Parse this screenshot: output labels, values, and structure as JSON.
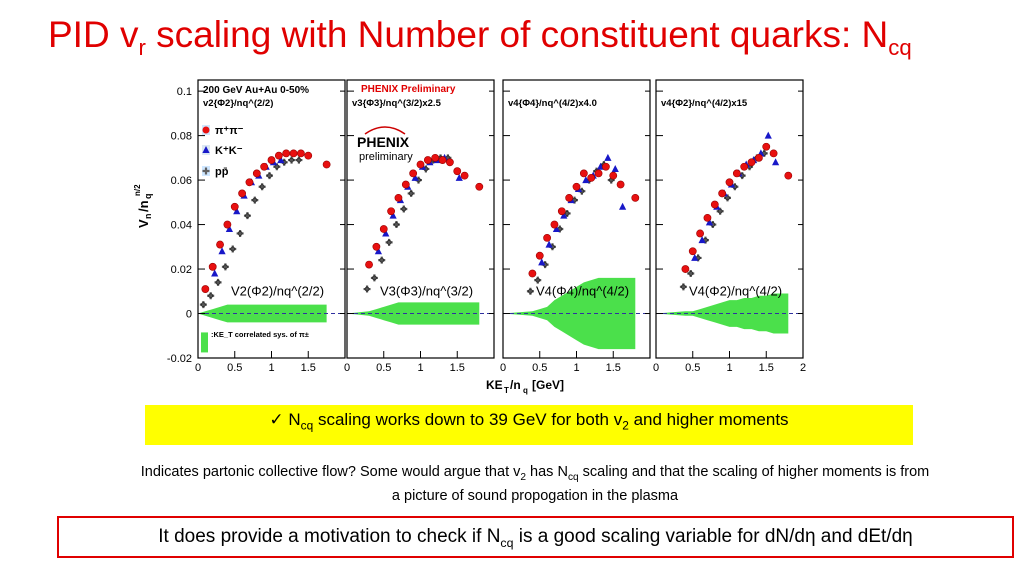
{
  "slide": {
    "title_main": "PID v",
    "title_sub1": "r",
    "title_rest": " scaling with Number of constituent quarks: N",
    "title_sub2": "cq",
    "bullet_pre": "✓ N",
    "bullet_sub": "cq",
    "bullet_mid": " scaling works down to 39 GeV for both v",
    "bullet_sub2": "2",
    "bullet_post": " and higher moments",
    "note_p1": "Indicates partonic collective flow? Some would argue that v",
    "note_sub1": "2",
    "note_p2": " has N",
    "note_sub2": "cq",
    "note_p3": " scaling and that the scaling of higher moments is from a picture of sound propogation in the plasma",
    "box_p1": "It does provide a motivation to check if N",
    "box_sub": "cq",
    "box_p2": " is a good scaling variable for dN/dη and dEt/dη"
  },
  "chart_data": {
    "type": "scatter",
    "xlabel": "KE_T/n_q [GeV]",
    "ylabel": "V_n/n_q^(n/2)",
    "xlim": [
      0,
      2
    ],
    "ylim": [
      -0.02,
      0.105
    ],
    "y_ticks": [
      "-0.02",
      "0",
      "0.02",
      "0.04",
      "0.06",
      "0.08",
      "0.1"
    ],
    "x_ticks": [
      "0",
      "0.5",
      "1",
      "1.5",
      "2"
    ],
    "system_label": "200 GeV Au+Au 0-50%",
    "phenix_label": "PHENIX Preliminary",
    "logo_text": "PHENIX",
    "logo_sub": "preliminary",
    "sys_note": ":KE_T correlated sys. of π±",
    "legend": [
      {
        "name": "π⁺π⁻",
        "color": "#e81010"
      },
      {
        "name": "K⁺K⁻",
        "color": "#1818c8"
      },
      {
        "name": "pp̄",
        "color": "#606060"
      }
    ],
    "panels": [
      {
        "header": "v2{Φ2}/nq^(2/2)",
        "overlay_label": "V2(Φ2)/nq^(2/2)",
        "x": [
          0.1,
          0.2,
          0.3,
          0.4,
          0.5,
          0.6,
          0.7,
          0.8,
          0.9,
          1.0,
          1.1,
          1.2,
          1.3,
          1.4,
          1.5,
          1.75
        ],
        "pions": [
          0.011,
          0.021,
          0.031,
          0.04,
          0.048,
          0.054,
          0.059,
          0.063,
          0.066,
          0.069,
          0.071,
          0.072,
          0.072,
          0.072,
          0.071,
          0.067
        ],
        "kaons": [
          null,
          0.018,
          0.028,
          0.038,
          0.046,
          0.053,
          0.059,
          0.062,
          0.066,
          0.068,
          0.069,
          null,
          null,
          null,
          null,
          null
        ],
        "protons": [
          0.004,
          0.008,
          0.014,
          0.021,
          0.029,
          0.036,
          0.044,
          0.051,
          0.057,
          0.062,
          0.066,
          0.068,
          0.069,
          0.069,
          null,
          null
        ],
        "band_halfwidth": [
          0.001,
          0.002,
          0.003,
          0.004,
          0.004,
          0.004,
          0.004,
          0.004,
          0.004,
          0.004,
          0.004,
          0.004,
          0.004,
          0.004,
          0.004,
          0.004
        ]
      },
      {
        "header": "v3{Φ3}/nq^(3/2)x2.5",
        "overlay_label": "V3(Φ3)/nq^(3/2)",
        "x": [
          0.3,
          0.4,
          0.5,
          0.6,
          0.7,
          0.8,
          0.9,
          1.0,
          1.1,
          1.2,
          1.3,
          1.4,
          1.5,
          1.6,
          1.8
        ],
        "pions": [
          0.022,
          0.03,
          0.038,
          0.046,
          0.052,
          0.058,
          0.063,
          0.067,
          0.069,
          0.07,
          0.069,
          0.068,
          0.064,
          0.062,
          0.057
        ],
        "kaons": [
          null,
          0.028,
          0.036,
          0.044,
          0.051,
          0.057,
          0.061,
          0.066,
          0.068,
          0.069,
          0.07,
          null,
          0.061,
          null,
          null
        ],
        "protons": [
          0.011,
          0.016,
          0.024,
          0.032,
          0.04,
          0.047,
          0.054,
          0.06,
          0.065,
          0.069,
          0.07,
          0.07,
          null,
          null,
          null
        ],
        "band_halfwidth": [
          0.001,
          0.002,
          0.003,
          0.004,
          0.005,
          0.005,
          0.005,
          0.005,
          0.005,
          0.005,
          0.005,
          0.005,
          0.005,
          0.005,
          0.005
        ]
      },
      {
        "header": "v4{Φ4}/nq^(4/2)x4.0",
        "overlay_label": "V4(Φ4)/nq^(4/2)",
        "x": [
          0.4,
          0.5,
          0.6,
          0.7,
          0.8,
          0.9,
          1.0,
          1.1,
          1.2,
          1.3,
          1.4,
          1.5,
          1.6,
          1.8
        ],
        "pions": [
          0.018,
          0.026,
          0.034,
          0.04,
          0.046,
          0.052,
          0.057,
          0.063,
          0.061,
          0.063,
          0.066,
          0.062,
          0.058,
          0.052
        ],
        "kaons": [
          null,
          0.023,
          0.031,
          0.038,
          0.044,
          0.051,
          0.056,
          0.06,
          0.062,
          0.066,
          0.07,
          0.065,
          0.048,
          null
        ],
        "protons": [
          0.01,
          0.015,
          0.022,
          0.03,
          0.038,
          0.045,
          0.051,
          0.055,
          0.06,
          0.064,
          0.067,
          0.06,
          null,
          null
        ],
        "band_halfwidth": [
          0.001,
          0.002,
          0.003,
          0.006,
          0.008,
          0.01,
          0.012,
          0.014,
          0.015,
          0.016,
          0.016,
          0.016,
          0.016,
          0.016
        ]
      },
      {
        "header": "v4{Φ2}/nq^(4/2)x15",
        "overlay_label": "V4(Φ2)/nq^(4/2)",
        "x": [
          0.4,
          0.5,
          0.6,
          0.7,
          0.8,
          0.9,
          1.0,
          1.1,
          1.2,
          1.3,
          1.4,
          1.5,
          1.6,
          1.8
        ],
        "pions": [
          0.02,
          0.028,
          0.036,
          0.043,
          0.049,
          0.054,
          0.059,
          0.063,
          0.066,
          0.068,
          0.07,
          0.075,
          0.072,
          0.062
        ],
        "kaons": [
          null,
          0.025,
          0.033,
          0.041,
          0.048,
          0.054,
          0.058,
          0.063,
          0.067,
          0.069,
          0.072,
          0.08,
          0.068,
          null
        ],
        "protons": [
          0.012,
          0.018,
          0.025,
          0.033,
          0.04,
          0.046,
          0.052,
          0.057,
          0.062,
          0.066,
          0.07,
          0.072,
          null,
          null
        ],
        "band_halfwidth": [
          0.001,
          0.001,
          0.002,
          0.003,
          0.004,
          0.005,
          0.006,
          0.006,
          0.007,
          0.007,
          0.008,
          0.008,
          0.009,
          0.009
        ]
      }
    ]
  }
}
